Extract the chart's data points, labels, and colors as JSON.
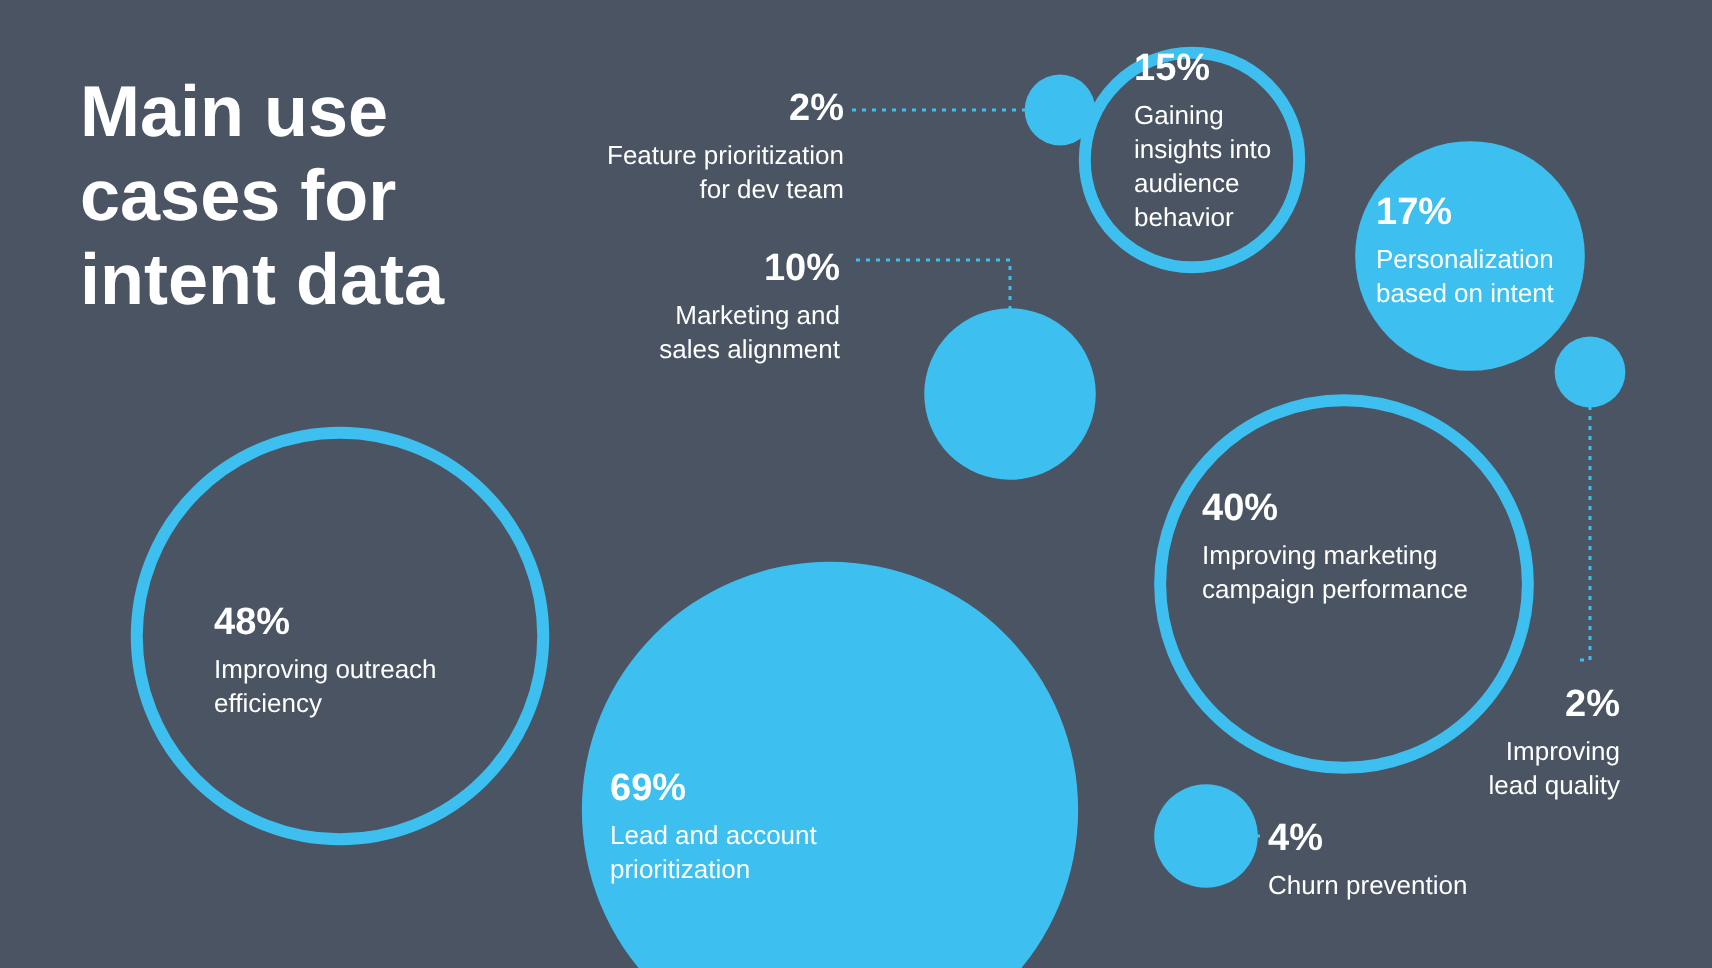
{
  "chart_data": {
    "type": "other",
    "title": "Main use cases for intent data",
    "categories": [
      "Feature prioritization for dev team",
      "Gaining insights into audience behavior",
      "Personalization based on intent",
      "Marketing and sales alignment",
      "Improving marketing campaign performance",
      "Improving outreach efficiency",
      "Improving lead quality",
      "Lead and account prioritization",
      "Churn prevention"
    ],
    "values": [
      2,
      15,
      17,
      10,
      40,
      48,
      2,
      69,
      4
    ],
    "value_labels": [
      "2%",
      "15%",
      "17%",
      "10%",
      "40%",
      "48%",
      "2%",
      "69%",
      "4%"
    ],
    "colors": [
      "#3dbfef",
      "#3dbfef",
      "#3dbfef",
      "#3dbfef",
      "#3dbfef",
      "#3dbfef",
      "#3dbfef",
      "#3dbfef",
      "#3dbfef"
    ]
  }
}
